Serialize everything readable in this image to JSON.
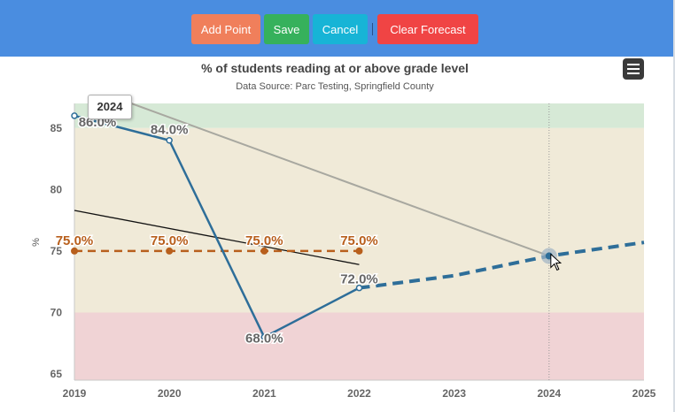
{
  "toolbar": {
    "add_point": "Add Point",
    "save": "Save",
    "cancel": "Cancel",
    "separator": "|",
    "clear_forecast": "Clear Forecast",
    "colors": {
      "background": "#4a8de0",
      "add": "#f07f5b",
      "save": "#36b15c",
      "cancel": "#17b4d6",
      "clear": "#f04444"
    }
  },
  "menu": {
    "icon": "hamburger-menu-icon"
  },
  "tooltip": {
    "label": "2024"
  },
  "chart_data": {
    "type": "line",
    "title": "% of students reading at or above grade level",
    "subtitle": "Data Source: Parc Testing, Springfield County",
    "ylabel": "%",
    "xlim": [
      2019,
      2025
    ],
    "ylim": [
      64.5,
      87
    ],
    "x_ticks": [
      "2019",
      "2020",
      "2021",
      "2022",
      "2023",
      "2024",
      "2025"
    ],
    "y_ticks": [
      "65",
      "70",
      "75",
      "80",
      "85"
    ],
    "bands": [
      {
        "from": 85,
        "to": 87,
        "color": "#d6e9d6"
      },
      {
        "from": 70,
        "to": 85,
        "color": "#f0ead8"
      },
      {
        "from": 64.5,
        "to": 70,
        "color": "#f0d3d5"
      }
    ],
    "series": [
      {
        "style": "solid",
        "color": "#2e6e99",
        "x": [
          2019,
          2020,
          2021,
          2022
        ],
        "y": [
          86,
          84,
          68,
          72
        ],
        "labels": [
          "86.0%",
          "84.0%",
          "68.0%",
          "72.0%"
        ]
      },
      {
        "style": "dashed",
        "color": "#2e6e99",
        "x": [
          2022,
          2023,
          2024,
          2025
        ],
        "y": [
          72,
          73,
          74.6,
          75.7
        ]
      },
      {
        "style": "dashed",
        "color": "#b85f1c",
        "x": [
          2019,
          2020,
          2021,
          2022
        ],
        "y": [
          75,
          75,
          75,
          75
        ],
        "labels": [
          "75.0%",
          "75.0%",
          "75.0%",
          "75.0%"
        ]
      },
      {
        "style": "trend",
        "color": "#111111",
        "x": [
          2019,
          2022
        ],
        "y": [
          78.3,
          73.9
        ]
      },
      {
        "style": "guide",
        "color": "#a8a8a0",
        "x": [
          2019.6,
          2024
        ],
        "y": [
          87,
          74.6
        ]
      }
    ],
    "highlight": {
      "x": 2024,
      "y": 74.6
    }
  }
}
